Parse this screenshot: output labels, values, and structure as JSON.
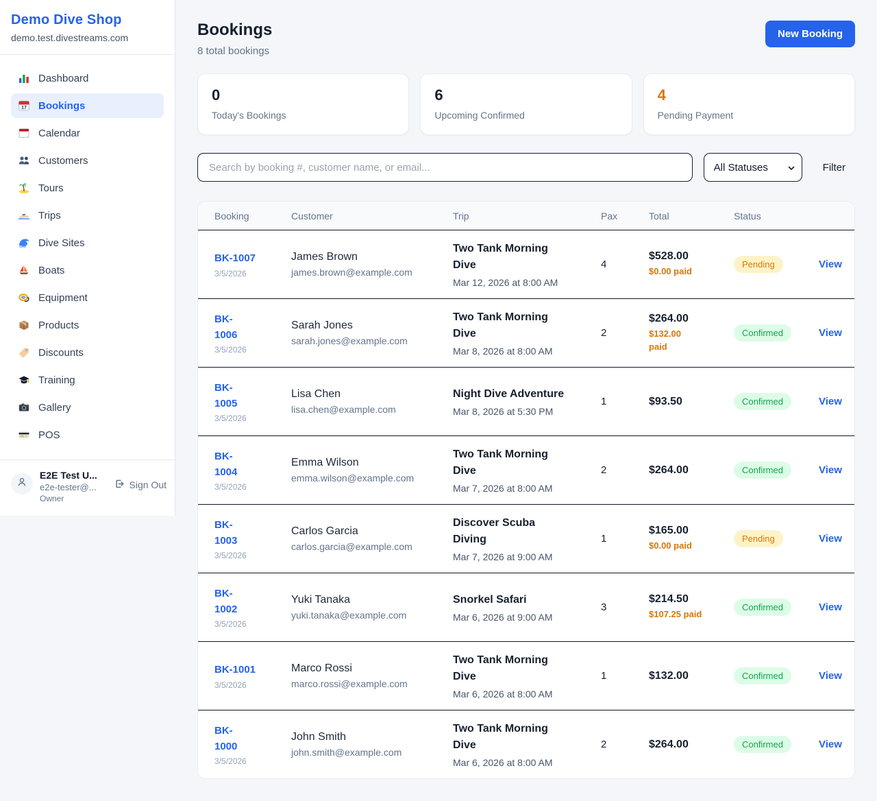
{
  "sidebar": {
    "shop_name": "Demo Dive Shop",
    "shop_domain": "demo.test.divestreams.com",
    "items": [
      {
        "label": "Dashboard",
        "icon": "bar-chart-icon",
        "active": false
      },
      {
        "label": "Bookings",
        "icon": "calendar-17-icon",
        "active": true
      },
      {
        "label": "Calendar",
        "icon": "calendar-icon",
        "active": false
      },
      {
        "label": "Customers",
        "icon": "people-icon",
        "active": false
      },
      {
        "label": "Tours",
        "icon": "island-icon",
        "active": false
      },
      {
        "label": "Trips",
        "icon": "speedboat-icon",
        "active": false
      },
      {
        "label": "Dive Sites",
        "icon": "wave-icon",
        "active": false
      },
      {
        "label": "Boats",
        "icon": "sailboat-icon",
        "active": false
      },
      {
        "label": "Equipment",
        "icon": "dive-mask-icon",
        "active": false
      },
      {
        "label": "Products",
        "icon": "package-icon",
        "active": false
      },
      {
        "label": "Discounts",
        "icon": "tag-icon",
        "active": false
      },
      {
        "label": "Training",
        "icon": "grad-cap-icon",
        "active": false
      },
      {
        "label": "Gallery",
        "icon": "camera-icon",
        "active": false
      },
      {
        "label": "POS",
        "icon": "credit-card-icon",
        "active": false
      }
    ],
    "user": {
      "name": "E2E Test U...",
      "email": "e2e-tester@...",
      "role": "Owner",
      "sign_out_label": "Sign Out"
    }
  },
  "header": {
    "title": "Bookings",
    "subtitle": "8 total bookings",
    "new_booking_label": "New Booking"
  },
  "stats": [
    {
      "value": "0",
      "label": "Today's Bookings",
      "color": "#16202e"
    },
    {
      "value": "6",
      "label": "Upcoming Confirmed",
      "color": "#16202e"
    },
    {
      "value": "4",
      "label": "Pending Payment",
      "color": "#d97706"
    }
  ],
  "filters": {
    "search_placeholder": "Search by booking #, customer name, or email...",
    "status_selected": "All Statuses",
    "filter_label": "Filter"
  },
  "table": {
    "columns": [
      "Booking",
      "Customer",
      "Trip",
      "Pax",
      "Total",
      "Status"
    ],
    "view_label": "View",
    "rows": [
      {
        "id": "BK-1007",
        "id_wrap": false,
        "date": "3/5/2026",
        "customer": "James Brown",
        "email": "james.brown@example.com",
        "trip": "Two Tank Morning Dive",
        "trip_wrap": true,
        "trip_time": "Mar 12, 2026 at 8:00 AM",
        "pax": "4",
        "total": "$528.00",
        "paid": "$0.00 paid",
        "paid_wrap": false,
        "status": "Pending"
      },
      {
        "id": "BK-1006",
        "id_wrap": true,
        "date": "3/5/2026",
        "customer": "Sarah Jones",
        "email": "sarah.jones@example.com",
        "trip": "Two Tank Morning Dive",
        "trip_wrap": true,
        "trip_time": "Mar 8, 2026 at 8:00 AM",
        "pax": "2",
        "total": "$264.00",
        "paid": "$132.00 paid",
        "paid_wrap": true,
        "status": "Confirmed"
      },
      {
        "id": "BK-1005",
        "id_wrap": true,
        "date": "3/5/2026",
        "customer": "Lisa Chen",
        "email": "lisa.chen@example.com",
        "trip": "Night Dive Adventure",
        "trip_wrap": false,
        "trip_time": "Mar 8, 2026 at 5:30 PM",
        "pax": "1",
        "total": "$93.50",
        "paid": null,
        "paid_wrap": false,
        "status": "Confirmed"
      },
      {
        "id": "BK-1004",
        "id_wrap": true,
        "date": "3/5/2026",
        "customer": "Emma Wilson",
        "email": "emma.wilson@example.com",
        "trip": "Two Tank Morning Dive",
        "trip_wrap": true,
        "trip_time": "Mar 7, 2026 at 8:00 AM",
        "pax": "2",
        "total": "$264.00",
        "paid": null,
        "paid_wrap": false,
        "status": "Confirmed"
      },
      {
        "id": "BK-1003",
        "id_wrap": true,
        "date": "3/5/2026",
        "customer": "Carlos Garcia",
        "email": "carlos.garcia@example.com",
        "trip": "Discover Scuba Diving",
        "trip_wrap": true,
        "trip_time": "Mar 7, 2026 at 9:00 AM",
        "pax": "1",
        "total": "$165.00",
        "paid": "$0.00 paid",
        "paid_wrap": false,
        "status": "Pending"
      },
      {
        "id": "BK-1002",
        "id_wrap": true,
        "date": "3/5/2026",
        "customer": "Yuki Tanaka",
        "email": "yuki.tanaka@example.com",
        "trip": "Snorkel Safari",
        "trip_wrap": false,
        "trip_time": "Mar 6, 2026 at 9:00 AM",
        "pax": "3",
        "total": "$214.50",
        "paid": "$107.25 paid",
        "paid_wrap": false,
        "status": "Confirmed"
      },
      {
        "id": "BK-1001",
        "id_wrap": false,
        "date": "3/5/2026",
        "customer": "Marco Rossi",
        "email": "marco.rossi@example.com",
        "trip": "Two Tank Morning Dive",
        "trip_wrap": true,
        "trip_time": "Mar 6, 2026 at 8:00 AM",
        "pax": "1",
        "total": "$132.00",
        "paid": null,
        "paid_wrap": false,
        "status": "Confirmed"
      },
      {
        "id": "BK-1000",
        "id_wrap": true,
        "date": "3/5/2026",
        "customer": "John Smith",
        "email": "john.smith@example.com",
        "trip": "Two Tank Morning Dive",
        "trip_wrap": true,
        "trip_time": "Mar 6, 2026 at 8:00 AM",
        "pax": "2",
        "total": "$264.00",
        "paid": null,
        "paid_wrap": false,
        "status": "Confirmed"
      }
    ]
  },
  "colors": {
    "accent_blue": "#2563eb",
    "active_nav_bg": "#e8f0fe",
    "pending_text": "#d97706",
    "pending_bg": "#fef3c7",
    "confirmed_text": "#16a34a",
    "confirmed_bg": "#dcfce7",
    "paid_amount": "#d97706",
    "row_border": "#0f172a"
  }
}
